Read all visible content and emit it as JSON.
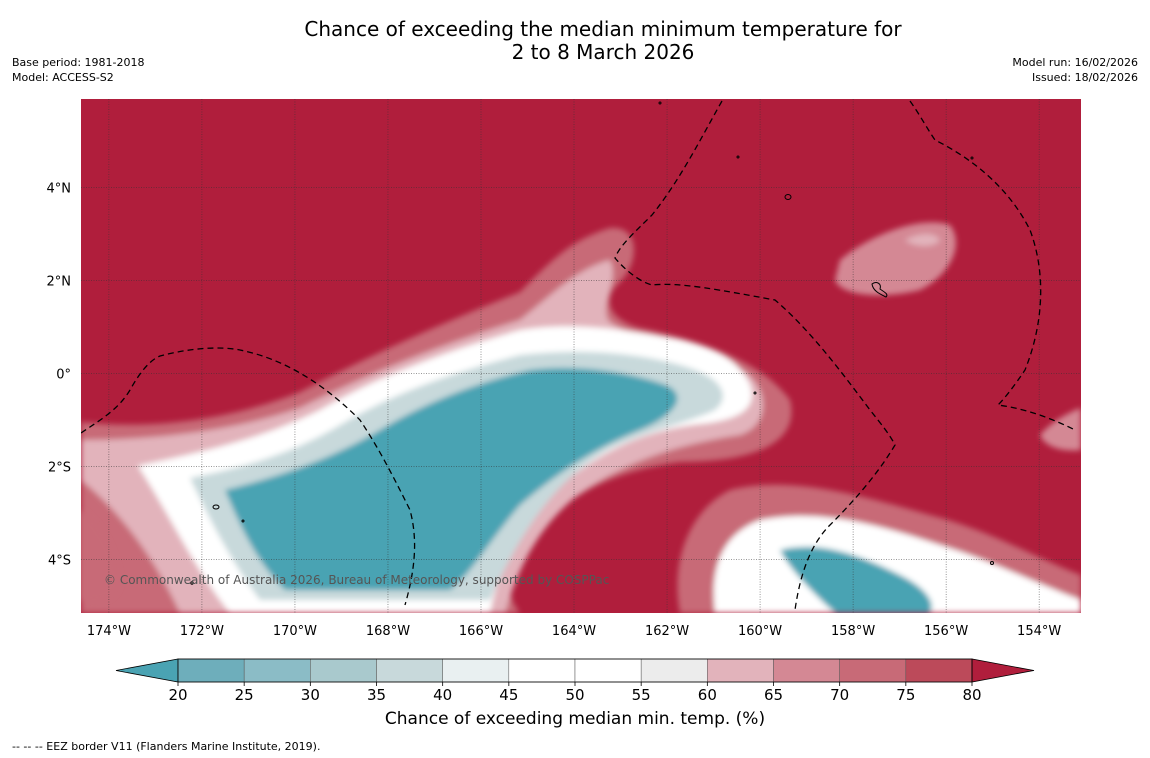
{
  "title": {
    "line1": "Chance of exceeding the median minimum temperature for",
    "line2": "2 to 8 March 2026"
  },
  "meta": {
    "base_period": "Base period: 1981-2018",
    "model": "Model: ACCESS-S2",
    "model_run": "Model run: 16/02/2026",
    "issued": "Issued: 18/02/2026"
  },
  "map": {
    "lat_labels": [
      "4°N",
      "2°N",
      "0°",
      "2°S",
      "4°S"
    ],
    "lat_values": [
      4,
      2,
      0,
      -2,
      -4
    ],
    "lon_labels": [
      "174°W",
      "172°W",
      "170°W",
      "168°W",
      "166°W",
      "164°W",
      "162°W",
      "160°W",
      "158°W",
      "156°W",
      "154°W"
    ],
    "lon_values": [
      -174,
      -172,
      -170,
      -168,
      -166,
      -164,
      -162,
      -160,
      -158,
      -156,
      -154
    ],
    "lon_range": [
      -174.6,
      -153.1
    ],
    "lat_range": [
      -5.15,
      5.9
    ],
    "copyright": "© Commonwealth of Australia 2026, Bureau of Meteorology, supported by COSPPac"
  },
  "colorbar": {
    "ticks": [
      "20",
      "25",
      "30",
      "35",
      "40",
      "45",
      "50",
      "55",
      "60",
      "65",
      "70",
      "75",
      "80"
    ],
    "colors": [
      "#4aa3b3",
      "#6eaebb",
      "#8bbcc6",
      "#a9c9cd",
      "#c8d9db",
      "#e9f0f1",
      "#ffffff",
      "#ffffff",
      "#ececec",
      "#e2b3bb",
      "#d48894",
      "#c86a77",
      "#bc4a5a",
      "#b01e3c"
    ],
    "label": "Chance of exceeding median min. temp. (%)"
  },
  "colors": {
    "high": "#b01e3c",
    "low": "#4aa3b3",
    "grid": "#333333"
  },
  "footnote": "--  --  -- EEZ border V11 (Flanders Marine Institute, 2019)."
}
